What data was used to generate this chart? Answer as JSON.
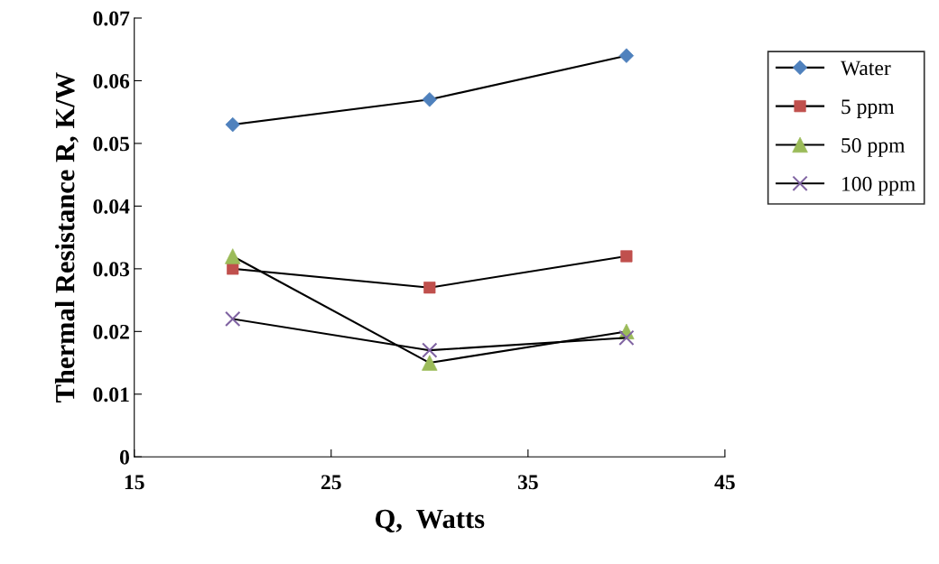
{
  "chart_data": {
    "type": "line",
    "xlabel": "Q,  Watts",
    "ylabel": "Thermal Resistance R, K/W",
    "x": [
      20,
      30,
      40
    ],
    "xlim": [
      15,
      45
    ],
    "xticks": [
      15,
      25,
      35,
      45
    ],
    "ylim": [
      0,
      0.07
    ],
    "yticks": [
      0,
      0.01,
      0.02,
      0.03,
      0.04,
      0.05,
      0.06,
      0.07
    ],
    "grid": false,
    "legend": "right",
    "series": [
      {
        "name": "Water",
        "color": "#4f81bd",
        "marker": "diamond",
        "values": [
          0.053,
          0.057,
          0.064
        ]
      },
      {
        "name": "5 ppm",
        "color": "#c0504d",
        "marker": "square",
        "values": [
          0.03,
          0.027,
          0.032
        ]
      },
      {
        "name": "50 ppm",
        "color": "#9bbb59",
        "marker": "triangle",
        "values": [
          0.032,
          0.015,
          0.02
        ]
      },
      {
        "name": "100 ppm",
        "color": "#8064a2",
        "marker": "cross",
        "values": [
          0.022,
          0.017,
          0.019
        ]
      }
    ]
  }
}
